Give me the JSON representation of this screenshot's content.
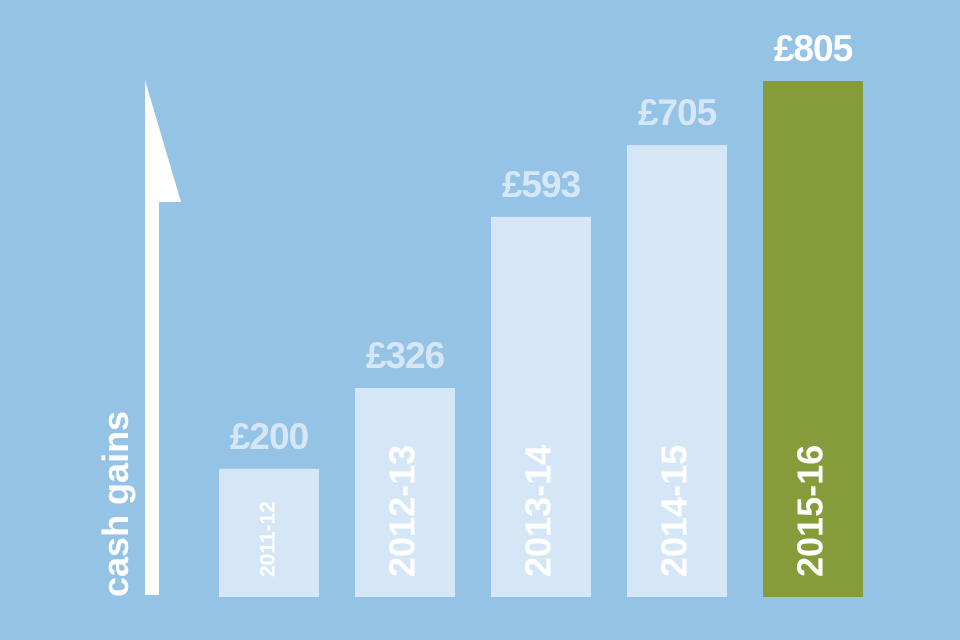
{
  "chart_data": {
    "type": "bar",
    "y_label": "cash gains",
    "categories": [
      "2011-12",
      "2012-13",
      "2013-14",
      "2014-15",
      "2015-16"
    ],
    "values": [
      200,
      326,
      593,
      705,
      805
    ],
    "value_labels": [
      "£200",
      "£326",
      "£593",
      "£705",
      "£805"
    ],
    "colors": [
      "#d5e7f6",
      "#d5e7f6",
      "#d5e7f6",
      "#d5e7f6",
      "#869c3b"
    ],
    "label_colors": [
      "#d5e7f6",
      "#d5e7f6",
      "#d5e7f6",
      "#d5e7f6",
      "#ffffff"
    ]
  }
}
